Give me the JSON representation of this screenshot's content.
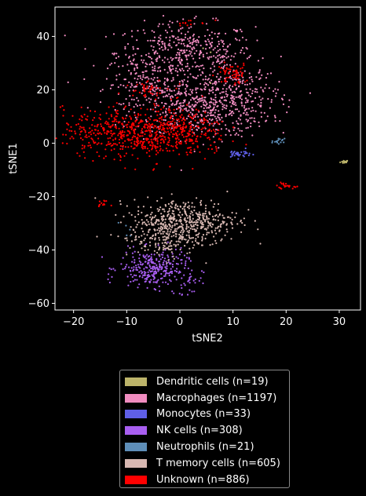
{
  "chart_data": {
    "type": "scatter",
    "title": "",
    "xlabel": "tSNE2",
    "ylabel": "tSNE1",
    "xlim": [
      -23.5,
      34
    ],
    "ylim": [
      -62.5,
      51
    ],
    "xticks": [
      -20,
      -10,
      0,
      10,
      20,
      30
    ],
    "yticks": [
      -60,
      -40,
      -20,
      0,
      20,
      40
    ],
    "legend_position": "below",
    "series": [
      {
        "name": "Dendritic cells (n=19)",
        "color": "#bcb46a",
        "clusters": [
          {
            "cx": 31,
            "cy": -7,
            "sx": 0.4,
            "sy": 0.3,
            "n": 16
          },
          {
            "cx": 7,
            "cy": 33,
            "sx": 4,
            "sy": 4,
            "n": 3
          }
        ]
      },
      {
        "name": "Macrophages (n=1197)",
        "color": "#f08cc0",
        "clusters": [
          {
            "cx": 1,
            "cy": 34,
            "sx": 6.5,
            "sy": 5.5,
            "n": 420
          },
          {
            "cx": 4,
            "cy": 14,
            "sx": 6.5,
            "sy": 6,
            "n": 500
          },
          {
            "cx": -6,
            "cy": 22,
            "sx": 4,
            "sy": 5,
            "n": 140
          },
          {
            "cx": 11,
            "cy": 18,
            "sx": 3.5,
            "sy": 6,
            "n": 137
          }
        ]
      },
      {
        "name": "Monocytes (n=33)",
        "color": "#5f5fe8",
        "clusters": [
          {
            "cx": 11,
            "cy": -4,
            "sx": 1.2,
            "sy": 0.8,
            "n": 33
          }
        ]
      },
      {
        "name": "NK cells (n=308)",
        "color": "#a85ef0",
        "clusters": [
          {
            "cx": -5,
            "cy": -47,
            "sx": 3.2,
            "sy": 3.4,
            "n": 285
          },
          {
            "cx": 2,
            "cy": -52,
            "sx": 0.9,
            "sy": 1.2,
            "n": 15
          },
          {
            "cx": 1,
            "cy": -56,
            "sx": 0.9,
            "sy": 0.8,
            "n": 8
          }
        ]
      },
      {
        "name": "Neutrophils (n=21)",
        "color": "#5e8eb8",
        "clusters": [
          {
            "cx": 18.5,
            "cy": 0.5,
            "sx": 0.6,
            "sy": 0.6,
            "n": 16
          },
          {
            "cx": -10,
            "cy": -33,
            "sx": 0.6,
            "sy": 2,
            "n": 5
          }
        ]
      },
      {
        "name": "T memory cells (n=605)",
        "color": "#d8b8b2",
        "clusters": [
          {
            "cx": 1,
            "cy": -29,
            "sx": 5,
            "sy": 4,
            "n": 450
          },
          {
            "cx": -3,
            "cy": -36,
            "sx": 3.5,
            "sy": 3.5,
            "n": 155
          }
        ]
      },
      {
        "name": "Unknown (n=886)",
        "color": "#ff0000",
        "clusters": [
          {
            "cx": -9,
            "cy": 4,
            "sx": 6.5,
            "sy": 4.5,
            "n": 560
          },
          {
            "cx": 1,
            "cy": 4,
            "sx": 4,
            "sy": 5,
            "n": 180
          },
          {
            "cx": 10,
            "cy": 26,
            "sx": 1.5,
            "sy": 2,
            "n": 60
          },
          {
            "cx": -6,
            "cy": 21,
            "sx": 2,
            "sy": 2,
            "n": 40
          },
          {
            "cx": 19.5,
            "cy": -16,
            "sx": 1,
            "sy": 0.5,
            "n": 22
          },
          {
            "cx": -14.5,
            "cy": -22.5,
            "sx": 0.5,
            "sy": 0.5,
            "n": 12
          },
          {
            "cx": 2,
            "cy": 45,
            "sx": 2,
            "sy": 0.5,
            "n": 12
          }
        ]
      }
    ]
  }
}
